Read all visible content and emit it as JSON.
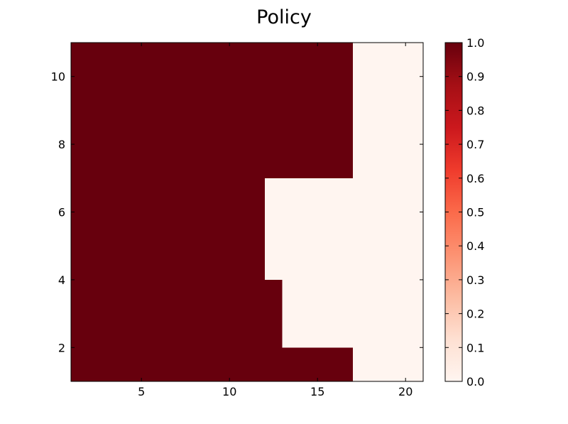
{
  "chart_data": {
    "type": "heatmap",
    "title": "Policy",
    "xlabel": "",
    "ylabel": "",
    "x_range": [
      1,
      21
    ],
    "y_range": [
      1,
      11
    ],
    "x_ticks": [
      5,
      10,
      15,
      20
    ],
    "y_ticks": [
      2,
      4,
      6,
      8,
      10
    ],
    "grid": false,
    "colormap": "Reds",
    "colorbar": {
      "range": [
        0.0,
        1.0
      ],
      "ticks": [
        "0.0",
        "0.1",
        "0.2",
        "0.3",
        "0.4",
        "0.5",
        "0.6",
        "0.7",
        "0.8",
        "0.9",
        "1.0"
      ],
      "colors": [
        "#fff5f0",
        "#fee0d2",
        "#fcbba1",
        "#fc9272",
        "#fb6a4a",
        "#ef3b2c",
        "#cb181d",
        "#a50f15",
        "#67000d"
      ]
    },
    "regions": [
      {
        "x": [
          1,
          17
        ],
        "y": [
          1,
          2
        ],
        "value": 1
      },
      {
        "x": [
          17,
          21
        ],
        "y": [
          1,
          2
        ],
        "value": 0
      },
      {
        "x": [
          1,
          13
        ],
        "y": [
          2,
          4
        ],
        "value": 1
      },
      {
        "x": [
          13,
          21
        ],
        "y": [
          2,
          4
        ],
        "value": 0
      },
      {
        "x": [
          1,
          12
        ],
        "y": [
          4,
          7
        ],
        "value": 1
      },
      {
        "x": [
          12,
          21
        ],
        "y": [
          4,
          7
        ],
        "value": 0
      },
      {
        "x": [
          1,
          17
        ],
        "y": [
          7,
          11
        ],
        "value": 1
      },
      {
        "x": [
          17,
          21
        ],
        "y": [
          7,
          11
        ],
        "value": 0
      }
    ]
  }
}
